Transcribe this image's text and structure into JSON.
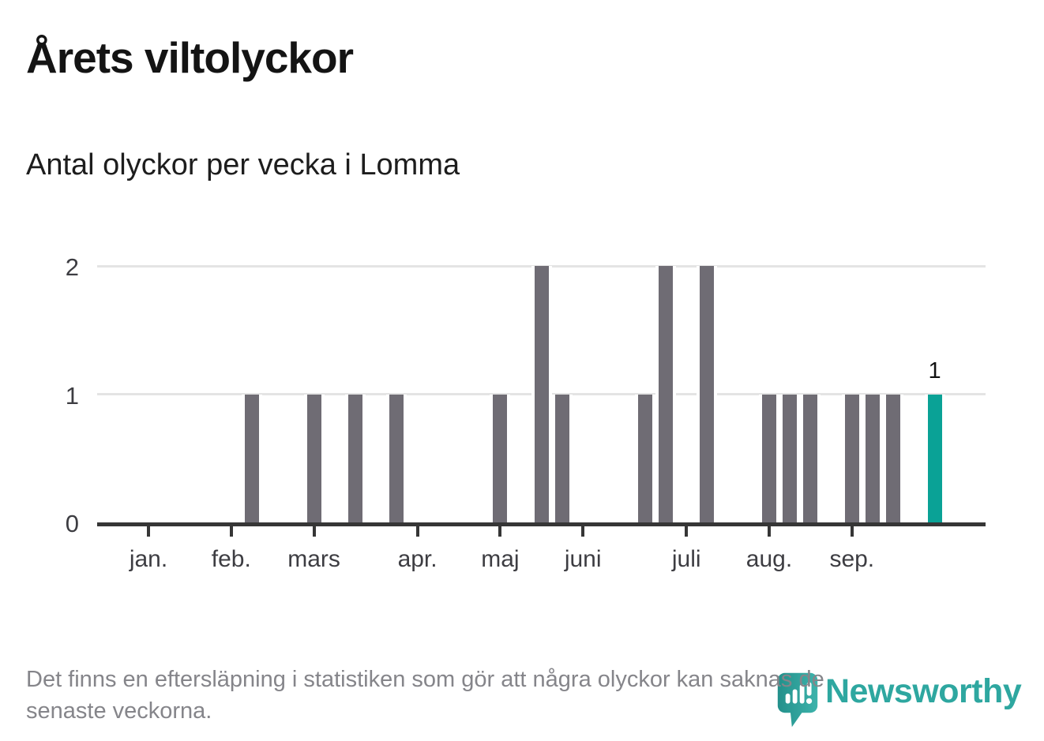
{
  "title": "Årets viltolyckor",
  "subtitle": "Antal olyckor per vecka i Lomma",
  "footer": {
    "line1": "Det finns en eftersläpning i statistiken som gör att några olyckor kan saknas de",
    "line2": "senaste veckorna."
  },
  "branding": {
    "name": "Newsworthy",
    "icon": "newsworthy-logo-icon",
    "text_color": "#2ea7a0",
    "icon_color_dark": "#23908b",
    "icon_color_light": "#3db3ab"
  },
  "colors": {
    "bar": "#6f6c74",
    "highlight_bar": "#0aa296",
    "gridline": "#e4e4e4",
    "axis": "#363636",
    "axis_label": "#3d3d42",
    "footer_text": "#85858a"
  },
  "chart_data": {
    "type": "bar",
    "title": "Årets viltolyckor",
    "subtitle": "Antal olyckor per vecka i Lomma",
    "xlabel": "",
    "ylabel": "Antal olyckor per vecka",
    "ylim": [
      0,
      2
    ],
    "yticks": [
      "0",
      "1",
      "2"
    ],
    "grid": "horizontal",
    "legend": "none",
    "x_unit": "week",
    "weeks": [
      1,
      2,
      3,
      4,
      5,
      6,
      7,
      8,
      9,
      10,
      11,
      12,
      13,
      14,
      15,
      16,
      17,
      18,
      19,
      20,
      21,
      22,
      23,
      24,
      25,
      26,
      27,
      28,
      29,
      30,
      31,
      32,
      33,
      34,
      35,
      36,
      37,
      38,
      39,
      40
    ],
    "values": [
      0,
      0,
      0,
      0,
      0,
      1,
      0,
      0,
      1,
      0,
      1,
      0,
      1,
      0,
      0,
      0,
      0,
      1,
      0,
      2,
      1,
      0,
      0,
      0,
      1,
      2,
      0,
      2,
      0,
      0,
      1,
      1,
      1,
      0,
      1,
      1,
      1,
      0,
      1,
      0
    ],
    "months": [
      {
        "label": "jan.",
        "week": 1
      },
      {
        "label": "feb.",
        "week": 5
      },
      {
        "label": "mars",
        "week": 9
      },
      {
        "label": "apr.",
        "week": 14
      },
      {
        "label": "maj",
        "week": 18
      },
      {
        "label": "juni",
        "week": 22
      },
      {
        "label": "juli",
        "week": 27
      },
      {
        "label": "aug.",
        "week": 31
      },
      {
        "label": "sep.",
        "week": 35
      }
    ],
    "highlight": {
      "week": 39,
      "value": 1,
      "label": "1"
    }
  }
}
